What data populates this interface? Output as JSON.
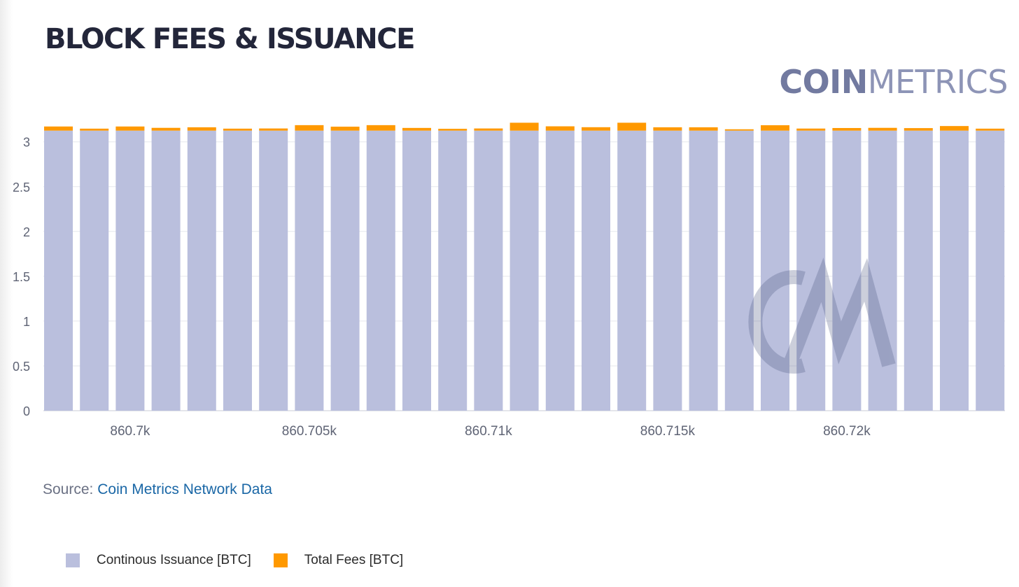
{
  "header": {
    "title": "BLOCK FEES & ISSUANCE",
    "logo_bold": "COIN",
    "logo_light": "METRICS"
  },
  "source": {
    "prefix": "Source: ",
    "link_text": "Coin Metrics Network Data"
  },
  "legend": {
    "items": [
      {
        "label": "Continous Issuance [BTC]",
        "color": "#babfdd"
      },
      {
        "label": "Total Fees [BTC]",
        "color": "#ff9900"
      }
    ]
  },
  "chart_data": {
    "type": "bar",
    "stacked": true,
    "categories": [
      860698,
      860699,
      860700,
      860701,
      860702,
      860703,
      860704,
      860705,
      860706,
      860707,
      860708,
      860709,
      860710,
      860711,
      860712,
      860713,
      860714,
      860715,
      860716,
      860717,
      860718,
      860719,
      860720,
      860721,
      860722,
      860723,
      860724
    ],
    "xticks": [
      {
        "value": 860700,
        "label": "860.7k"
      },
      {
        "value": 860705,
        "label": "860.705k"
      },
      {
        "value": 860710,
        "label": "860.71k"
      },
      {
        "value": 860715,
        "label": "860.715k"
      },
      {
        "value": 860720,
        "label": "860.72k"
      }
    ],
    "yticks": [
      0,
      0.5,
      1,
      1.5,
      2,
      2.5,
      3
    ],
    "ylim": [
      0,
      3.3
    ],
    "grid": true,
    "series": [
      {
        "name": "Continous Issuance [BTC]",
        "color": "#babfdd",
        "values": [
          3.125,
          3.125,
          3.125,
          3.125,
          3.125,
          3.125,
          3.125,
          3.125,
          3.125,
          3.125,
          3.125,
          3.125,
          3.125,
          3.125,
          3.125,
          3.125,
          3.125,
          3.125,
          3.125,
          3.125,
          3.125,
          3.125,
          3.125,
          3.125,
          3.125,
          3.125,
          3.125
        ]
      },
      {
        "name": "Total Fees [BTC]",
        "color": "#ff9900",
        "values": [
          0.046,
          0.022,
          0.046,
          0.031,
          0.037,
          0.022,
          0.024,
          0.061,
          0.044,
          0.061,
          0.03,
          0.02,
          0.024,
          0.088,
          0.048,
          0.038,
          0.088,
          0.037,
          0.037,
          0.015,
          0.06,
          0.023,
          0.029,
          0.031,
          0.028,
          0.051,
          0.022
        ]
      }
    ]
  }
}
